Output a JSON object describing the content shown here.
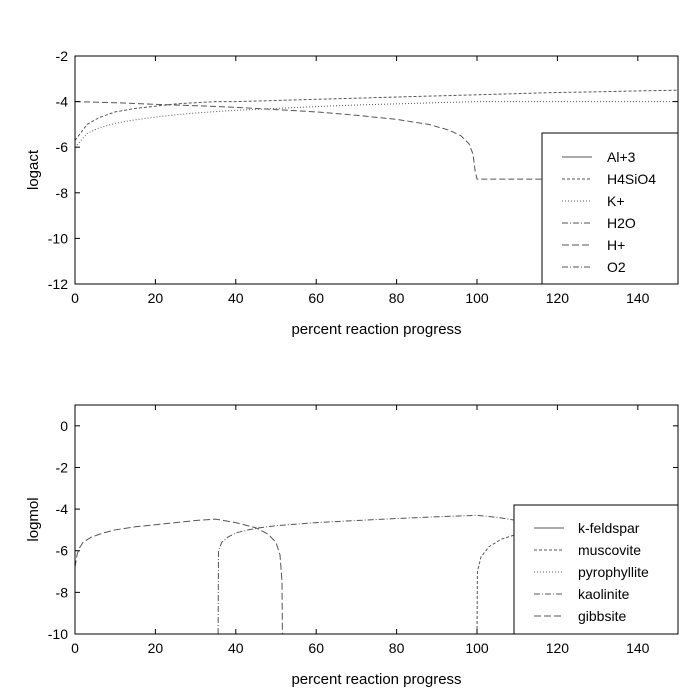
{
  "chart_data": [
    {
      "type": "line",
      "xlabel": "percent reaction progress",
      "ylabel": "logact",
      "xlim": [
        0,
        150
      ],
      "ylim": [
        -12,
        -2
      ],
      "xticks": [
        0,
        20,
        40,
        60,
        80,
        100,
        120,
        140
      ],
      "yticks": [
        -12,
        -10,
        -8,
        -6,
        -4,
        -2
      ],
      "legend_position": "right",
      "legend": [
        "Al+3",
        "H4SiO4",
        "K+",
        "H2O",
        "H+",
        "O2"
      ],
      "series": [
        {
          "name": "H4SiO4",
          "color": "#555555",
          "dash": "3,2",
          "points": [
            [
              0,
              -5.7
            ],
            [
              3,
              -5.0
            ],
            [
              6,
              -4.7
            ],
            [
              10,
              -4.45
            ],
            [
              15,
              -4.3
            ],
            [
              20,
              -4.2
            ],
            [
              25,
              -4.1
            ],
            [
              30,
              -4.05
            ],
            [
              35,
              -4.0
            ],
            [
              40,
              -4.0
            ],
            [
              50,
              -3.95
            ],
            [
              60,
              -3.9
            ],
            [
              70,
              -3.85
            ],
            [
              80,
              -3.8
            ],
            [
              90,
              -3.75
            ],
            [
              100,
              -3.7
            ],
            [
              110,
              -3.65
            ],
            [
              120,
              -3.6
            ],
            [
              130,
              -3.57
            ],
            [
              140,
              -3.53
            ],
            [
              150,
              -3.5
            ]
          ]
        },
        {
          "name": "K+",
          "color": "#555555",
          "dash": "1,2",
          "points": [
            [
              0,
              -6.0
            ],
            [
              3,
              -5.4
            ],
            [
              6,
              -5.15
            ],
            [
              10,
              -4.95
            ],
            [
              15,
              -4.8
            ],
            [
              20,
              -4.68
            ],
            [
              25,
              -4.58
            ],
            [
              30,
              -4.5
            ],
            [
              35,
              -4.44
            ],
            [
              40,
              -4.38
            ],
            [
              45,
              -4.34
            ],
            [
              50,
              -4.3
            ],
            [
              60,
              -4.22
            ],
            [
              70,
              -4.15
            ],
            [
              80,
              -4.1
            ],
            [
              90,
              -4.05
            ],
            [
              100,
              -4.0
            ],
            [
              110,
              -4.0
            ],
            [
              120,
              -4.0
            ],
            [
              130,
              -4.0
            ],
            [
              140,
              -4.0
            ],
            [
              150,
              -4.0
            ]
          ]
        },
        {
          "name": "H+",
          "color": "#555555",
          "dash": "6,3",
          "points": [
            [
              0,
              -4.0
            ],
            [
              10,
              -4.05
            ],
            [
              20,
              -4.12
            ],
            [
              30,
              -4.18
            ],
            [
              40,
              -4.25
            ],
            [
              50,
              -4.35
            ],
            [
              60,
              -4.45
            ],
            [
              70,
              -4.6
            ],
            [
              80,
              -4.78
            ],
            [
              88,
              -5.0
            ],
            [
              93,
              -5.25
            ],
            [
              96,
              -5.5
            ],
            [
              98,
              -5.85
            ],
            [
              99,
              -6.3
            ],
            [
              99.5,
              -7.0
            ],
            [
              100,
              -7.4
            ],
            [
              110,
              -7.4
            ],
            [
              120,
              -7.4
            ],
            [
              130,
              -7.4
            ],
            [
              140,
              -7.4
            ],
            [
              150,
              -7.4
            ]
          ]
        }
      ]
    },
    {
      "type": "line",
      "xlabel": "percent reaction progress",
      "ylabel": "logmol",
      "xlim": [
        0,
        150
      ],
      "ylim": [
        -10,
        1
      ],
      "xticks": [
        0,
        20,
        40,
        60,
        80,
        100,
        120,
        140
      ],
      "yticks": [
        -10,
        -8,
        -6,
        -4,
        -2,
        0
      ],
      "legend_position": "bottom-right",
      "legend": [
        "k-feldspar",
        "muscovite",
        "pyrophyllite",
        "kaolinite",
        "gibbsite"
      ],
      "series": [
        {
          "name": "gibbsite",
          "color": "#555555",
          "dash": "7,3",
          "points": [
            [
              0,
              -6.8
            ],
            [
              0.5,
              -6.2
            ],
            [
              1,
              -5.9
            ],
            [
              2,
              -5.6
            ],
            [
              4,
              -5.35
            ],
            [
              7,
              -5.15
            ],
            [
              10,
              -5.0
            ],
            [
              15,
              -4.85
            ],
            [
              20,
              -4.75
            ],
            [
              25,
              -4.65
            ],
            [
              30,
              -4.55
            ],
            [
              35,
              -4.48
            ],
            [
              40,
              -4.65
            ],
            [
              45,
              -4.9
            ],
            [
              48,
              -5.2
            ],
            [
              50,
              -5.6
            ],
            [
              51,
              -6.2
            ],
            [
              51.5,
              -7.5
            ],
            [
              51.6,
              -10.0
            ]
          ]
        },
        {
          "name": "kaolinite",
          "color": "#555555",
          "dash": "6,2,1,2",
          "points": [
            [
              35.6,
              -10.0
            ],
            [
              35.7,
              -6.0
            ],
            [
              36.5,
              -5.6
            ],
            [
              38,
              -5.35
            ],
            [
              40,
              -5.15
            ],
            [
              43,
              -5.0
            ],
            [
              46,
              -4.9
            ],
            [
              50,
              -4.8
            ],
            [
              60,
              -4.65
            ],
            [
              70,
              -4.55
            ],
            [
              80,
              -4.45
            ],
            [
              90,
              -4.37
            ],
            [
              100,
              -4.3
            ],
            [
              105,
              -4.4
            ],
            [
              110,
              -4.55
            ],
            [
              115,
              -4.75
            ],
            [
              120,
              -5.0
            ]
          ]
        },
        {
          "name": "muscovite",
          "color": "#555555",
          "dash": "3,2",
          "points": [
            [
              100,
              -10.0
            ],
            [
              100.1,
              -7.0
            ],
            [
              101,
              -6.3
            ],
            [
              103,
              -5.8
            ],
            [
              106,
              -5.45
            ],
            [
              110,
              -5.2
            ],
            [
              114,
              -5.05
            ],
            [
              117,
              -4.95
            ]
          ]
        }
      ]
    }
  ]
}
